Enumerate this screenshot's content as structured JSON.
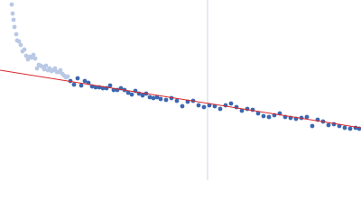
{
  "chart_data": {
    "type": "scatter",
    "xlim": [
      0,
      400
    ],
    "ylim": [
      0,
      200
    ],
    "vline": {
      "x": 230,
      "color": "#c9d5ea"
    },
    "fit": {
      "x": [
        0,
        400
      ],
      "y": [
        122,
        58
      ],
      "color": "#d9262c"
    },
    "series": [
      {
        "color": "#b9c9e5",
        "x": [
          13,
          14,
          15,
          16,
          18,
          19,
          21,
          23,
          25,
          27,
          29,
          31,
          33,
          35,
          37,
          39,
          41,
          43,
          45,
          47,
          49,
          51,
          53,
          55,
          57,
          59,
          61,
          63,
          65,
          67,
          69,
          71,
          73,
          75
        ],
        "y": [
          195,
          185,
          178,
          170,
          162,
          155,
          154,
          150,
          143,
          145,
          138,
          134,
          137,
          136,
          139,
          135,
          124,
          128,
          127,
          126,
          123,
          127,
          122,
          124,
          121,
          122,
          124,
          120,
          120,
          122,
          118,
          116,
          114,
          115
        ]
      },
      {
        "color": "#3b68b0",
        "x": [
          78,
          82,
          86,
          90,
          94,
          98,
          102,
          106,
          110,
          114,
          118,
          122,
          126,
          130,
          134,
          138,
          142,
          146,
          150,
          154,
          158,
          162,
          166,
          170,
          174,
          178,
          184,
          190,
          196,
          202,
          208,
          214,
          220,
          226,
          232,
          238,
          244,
          250,
          256,
          262,
          268,
          274,
          280,
          286,
          292,
          298,
          304,
          310,
          316,
          322,
          328,
          334,
          340,
          346,
          352,
          358,
          364,
          370,
          376,
          382,
          388,
          394,
          398
        ],
        "y": [
          110,
          106,
          113,
          105,
          110,
          108,
          104,
          103,
          103,
          102,
          102,
          105,
          100,
          100,
          102,
          100,
          97,
          95,
          99,
          96,
          94,
          96,
          92,
          91,
          92,
          90,
          89,
          91,
          88,
          82,
          87,
          88,
          83,
          81,
          83,
          82,
          79,
          83,
          85,
          81,
          77,
          79,
          78,
          74,
          71,
          70,
          72,
          74,
          70,
          69,
          68,
          69,
          70,
          60,
          67,
          65,
          61,
          62,
          60,
          58,
          57,
          58,
          57
        ]
      }
    ]
  }
}
